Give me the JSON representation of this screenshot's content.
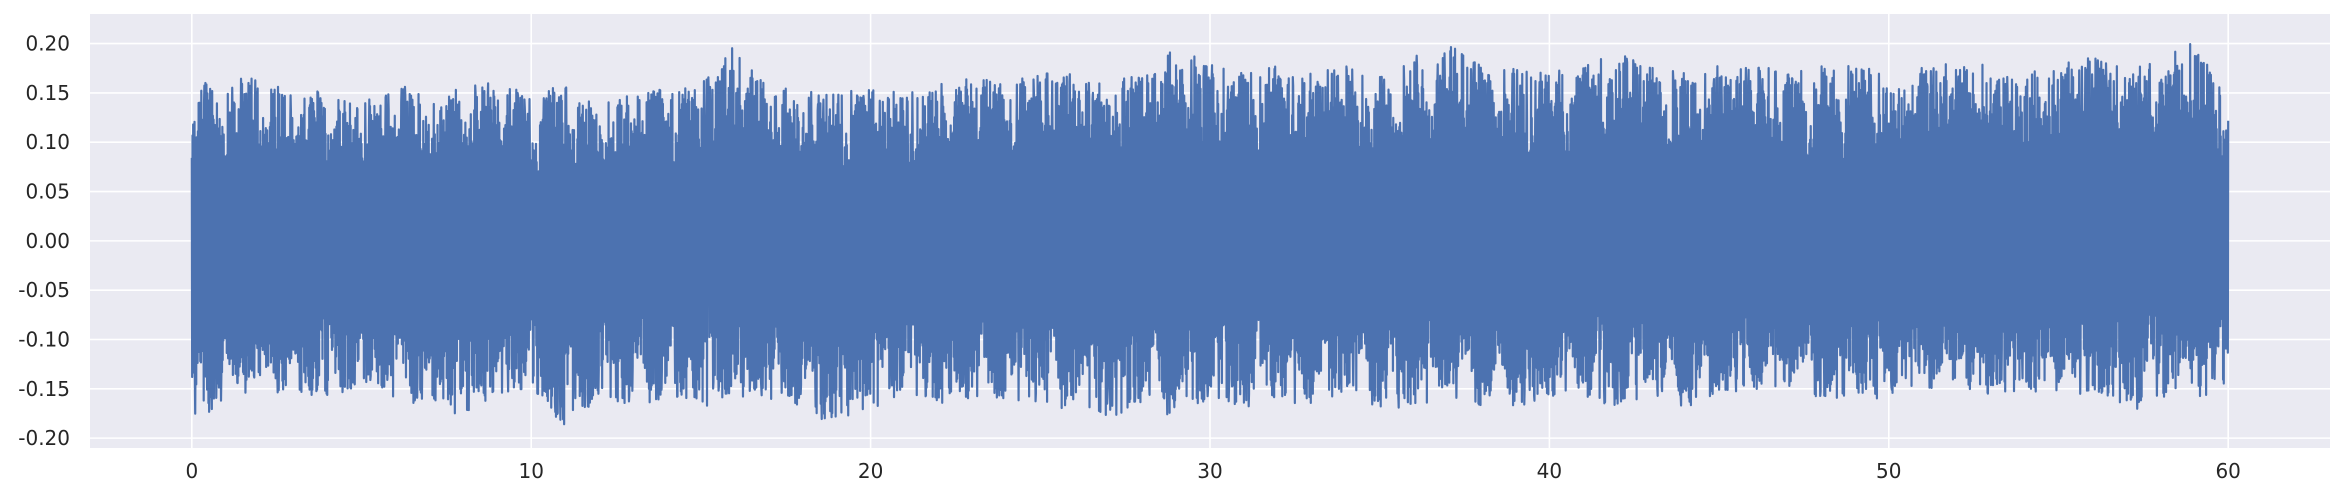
{
  "chart_data": {
    "type": "line",
    "title": "",
    "xlabel": "",
    "ylabel": "",
    "xlim": [
      -3,
      63
    ],
    "ylim": [
      -0.21,
      0.23
    ],
    "x_ticks": [
      0,
      10,
      20,
      30,
      40,
      50,
      60
    ],
    "y_ticks": [
      -0.2,
      -0.15,
      -0.1,
      -0.05,
      0.0,
      0.05,
      0.1,
      0.15,
      0.2
    ],
    "x_tick_labels": [
      "0",
      "10",
      "20",
      "30",
      "40",
      "50",
      "60"
    ],
    "y_tick_labels": [
      "-0.20",
      "-0.15",
      "-0.10",
      "-0.05",
      "0.00",
      "0.05",
      "0.10",
      "0.15",
      "0.20"
    ],
    "grid": true,
    "legend": "none",
    "series": [
      {
        "color": "#4c72b0",
        "x_range": [
          0,
          60
        ],
        "envelope_x": [
          0,
          1,
          2,
          3,
          4,
          5,
          6,
          7,
          8,
          9,
          10,
          11,
          12,
          13,
          14,
          15,
          16,
          17,
          18,
          19,
          20,
          21,
          22,
          23,
          24,
          25,
          26,
          27,
          28,
          29,
          30,
          31,
          32,
          33,
          34,
          35,
          36,
          37,
          38,
          39,
          40,
          41,
          42,
          43,
          44,
          45,
          46,
          47,
          48,
          49,
          50,
          51,
          52,
          53,
          54,
          55,
          56,
          57,
          58,
          59,
          60
        ],
        "envelope_max": [
          0.17,
          0.16,
          0.17,
          0.16,
          0.15,
          0.14,
          0.16,
          0.15,
          0.16,
          0.16,
          0.15,
          0.16,
          0.14,
          0.15,
          0.16,
          0.16,
          0.2,
          0.16,
          0.16,
          0.15,
          0.16,
          0.15,
          0.16,
          0.17,
          0.16,
          0.17,
          0.17,
          0.16,
          0.17,
          0.2,
          0.18,
          0.17,
          0.18,
          0.17,
          0.18,
          0.17,
          0.19,
          0.2,
          0.18,
          0.18,
          0.17,
          0.18,
          0.19,
          0.18,
          0.17,
          0.18,
          0.18,
          0.17,
          0.18,
          0.18,
          0.17,
          0.18,
          0.18,
          0.18,
          0.17,
          0.18,
          0.19,
          0.18,
          0.18,
          0.21,
          0.14
        ],
        "envelope_min": [
          -0.19,
          -0.16,
          -0.15,
          -0.16,
          -0.16,
          -0.15,
          -0.16,
          -0.17,
          -0.18,
          -0.16,
          -0.15,
          -0.19,
          -0.16,
          -0.17,
          -0.16,
          -0.17,
          -0.16,
          -0.16,
          -0.17,
          -0.19,
          -0.17,
          -0.16,
          -0.17,
          -0.16,
          -0.16,
          -0.17,
          -0.17,
          -0.18,
          -0.17,
          -0.18,
          -0.16,
          -0.17,
          -0.16,
          -0.17,
          -0.16,
          -0.17,
          -0.17,
          -0.16,
          -0.17,
          -0.17,
          -0.16,
          -0.16,
          -0.17,
          -0.16,
          -0.17,
          -0.16,
          -0.15,
          -0.16,
          -0.16,
          -0.16,
          -0.16,
          -0.15,
          -0.16,
          -0.16,
          -0.15,
          -0.16,
          -0.16,
          -0.18,
          -0.16,
          -0.16,
          -0.15
        ]
      }
    ]
  }
}
